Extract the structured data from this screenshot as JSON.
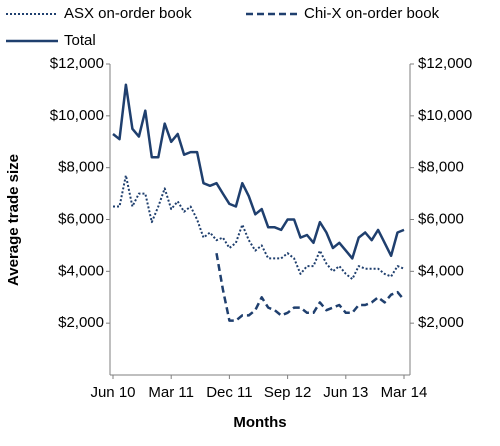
{
  "chart_data": {
    "type": "line",
    "x_label": "Months",
    "y_label": "Average trade size",
    "categories": [
      "Jun 10",
      null,
      null,
      null,
      null,
      null,
      null,
      null,
      null,
      "Mar 11",
      null,
      null,
      null,
      null,
      null,
      null,
      null,
      null,
      "Dec 11",
      null,
      null,
      null,
      null,
      null,
      null,
      null,
      null,
      "Sep 12",
      null,
      null,
      null,
      null,
      null,
      null,
      null,
      null,
      "Jun 13",
      null,
      null,
      null,
      null,
      null,
      null,
      null,
      null,
      "Mar 14"
    ],
    "series": [
      {
        "name": "ASX on-order book",
        "color": "#1f3f6e",
        "dash": "dotted",
        "values": [
          6500,
          6500,
          7700,
          6500,
          7000,
          7000,
          5900,
          6500,
          7200,
          6400,
          6700,
          6300,
          6500,
          6000,
          5300,
          5500,
          5200,
          5300,
          4900,
          5100,
          5800,
          5200,
          4800,
          5000,
          4500,
          4500,
          4500,
          4700,
          4500,
          3900,
          4200,
          4200,
          4800,
          4300,
          4000,
          4200,
          3900,
          3700,
          4200,
          4100,
          4100,
          4100,
          3900,
          3800,
          4200,
          4100
        ]
      },
      {
        "name": "Chi-X on-order book",
        "color": "#1f3f6e",
        "dash": "dashed",
        "values": [
          null,
          null,
          null,
          null,
          null,
          null,
          null,
          null,
          null,
          null,
          null,
          null,
          null,
          null,
          null,
          null,
          4700,
          3300,
          2100,
          2100,
          2300,
          2300,
          2500,
          3000,
          2600,
          2500,
          2300,
          2400,
          2600,
          2600,
          2400,
          2400,
          2800,
          2500,
          2600,
          2700,
          2400,
          2400,
          2700,
          2700,
          2800,
          3000,
          2800,
          3100,
          3200,
          2900
        ]
      },
      {
        "name": "Total",
        "color": "#1f3f6e",
        "dash": "solid",
        "values": [
          9300,
          9100,
          11200,
          9500,
          9200,
          10200,
          8400,
          8400,
          9700,
          9000,
          9300,
          8500,
          8600,
          8600,
          7400,
          7300,
          7400,
          7000,
          6600,
          6500,
          7400,
          6900,
          6200,
          6400,
          5700,
          5700,
          5600,
          6000,
          6000,
          5300,
          5400,
          5100,
          5900,
          5500,
          4900,
          5100,
          4800,
          4500,
          5300,
          5500,
          5200,
          5600,
          5100,
          4600,
          5500,
          5600
        ]
      }
    ],
    "ylim": [
      0,
      12000
    ],
    "yticks": [
      {
        "value": 2000,
        "label": "$2,000"
      },
      {
        "value": 4000,
        "label": "$4,000"
      },
      {
        "value": 6000,
        "label": "$6,000"
      },
      {
        "value": 8000,
        "label": "$8,000"
      },
      {
        "value": 10000,
        "label": "$10,000"
      },
      {
        "value": 12000,
        "label": "$12,000"
      }
    ],
    "secondary_axis_labels": true
  }
}
